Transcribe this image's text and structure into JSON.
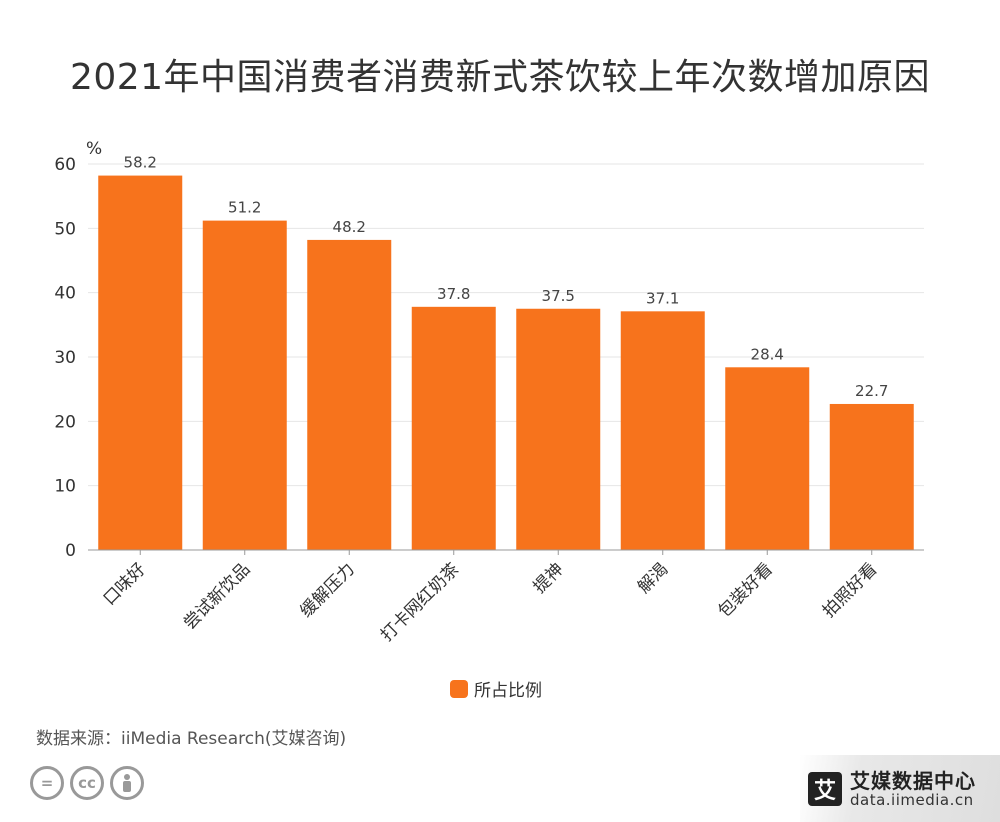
{
  "title": "2021年中国消费者消费新式茶饮较上年次数增加原因",
  "legend_label": "所占比例",
  "source": "数据来源：iiMedia Research(艾媒咨询)",
  "brand": {
    "logo": "艾",
    "name": "艾媒数据中心",
    "url": "data.iimedia.cn"
  },
  "license_icons": [
    "=",
    "cc",
    "person-icon"
  ],
  "colors": {
    "bar": "#f7731c",
    "grid": "#e6e6e6",
    "axis": "#999999"
  },
  "chart_data": {
    "type": "bar",
    "unit_label": "%",
    "categories": [
      "口味好",
      "尝试新饮品",
      "缓解压力",
      "打卡网红奶茶",
      "提神",
      "解渴",
      "包装好看",
      "拍照好看"
    ],
    "series": [
      {
        "name": "所占比例",
        "values": [
          58.2,
          51.2,
          48.2,
          37.8,
          37.5,
          37.1,
          28.4,
          22.7
        ]
      }
    ],
    "ylim": [
      0,
      60
    ],
    "yticks": [
      0,
      10,
      20,
      30,
      40,
      50,
      60
    ],
    "grid": true,
    "legend_position": "bottom-center"
  }
}
